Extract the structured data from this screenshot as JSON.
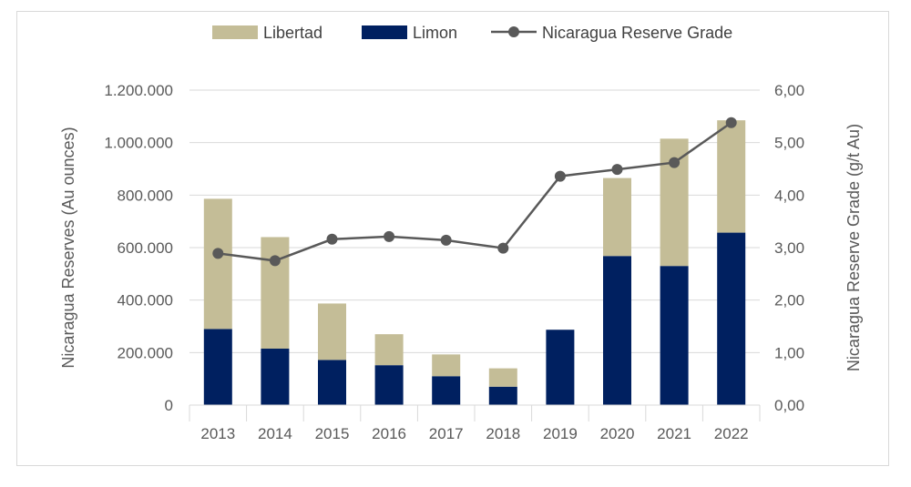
{
  "chart_data": {
    "type": "bar",
    "stacked": true,
    "categories": [
      "2013",
      "2014",
      "2015",
      "2016",
      "2017",
      "2018",
      "2019",
      "2020",
      "2021",
      "2022"
    ],
    "series": [
      {
        "name": "Limon",
        "kind": "bar",
        "color": "#002060",
        "axis": "left",
        "values": [
          290000,
          215000,
          172000,
          152000,
          110000,
          70000,
          287000,
          568000,
          530000,
          657000
        ]
      },
      {
        "name": "Libertad",
        "kind": "bar",
        "color": "#C4BD97",
        "axis": "left",
        "values": [
          496000,
          425000,
          215000,
          118000,
          83000,
          70000,
          0,
          297000,
          485000,
          428000
        ]
      },
      {
        "name": "Nicaragua Reserve Grade",
        "kind": "line",
        "color": "#595959",
        "axis": "right",
        "values": [
          2.89,
          2.75,
          3.16,
          3.21,
          3.14,
          2.99,
          4.36,
          4.49,
          4.62,
          5.38
        ]
      }
    ],
    "legend_order": [
      "Libertad",
      "Limon",
      "Nicaragua Reserve Grade"
    ],
    "legend": "top",
    "ylabel": "Nicaragua Reserves (Au ounces)",
    "ylabel_right": "Nicaragua Reserve Grade (g/t Au)",
    "ylim": [
      0,
      1200000
    ],
    "ylim_right": [
      0,
      6
    ],
    "yticks": [
      0,
      200000,
      400000,
      600000,
      800000,
      1000000,
      1200000
    ],
    "ytick_labels": [
      "0",
      "200.000",
      "400.000",
      "600.000",
      "800.000",
      "1.000.000",
      "1.200.000"
    ],
    "yticks_right": [
      0,
      1,
      2,
      3,
      4,
      5,
      6
    ],
    "ytick_labels_right": [
      "0,00",
      "1,00",
      "2,00",
      "3,00",
      "4,00",
      "5,00",
      "6,00"
    ],
    "grid": true
  }
}
